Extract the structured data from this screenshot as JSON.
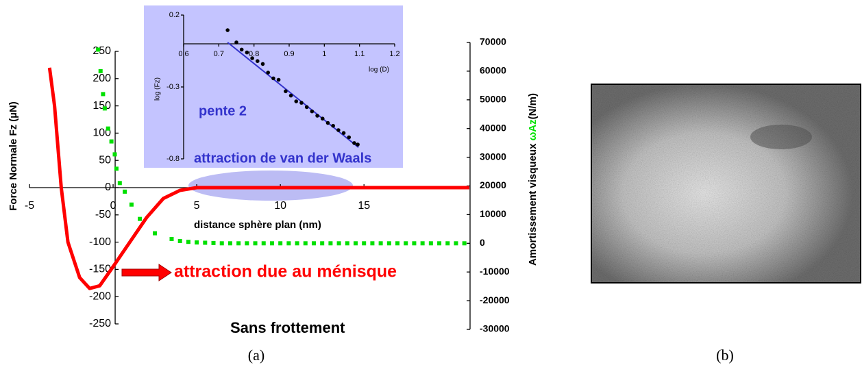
{
  "chart_data": [
    {
      "type": "line",
      "x_label": "distance sphère plan (nm)",
      "y_label": "Force Normale Fz (µN)",
      "y2_label_start": "Amortissement visqueux ",
      "y2_label_symbol": "ωAz",
      "y2_label_end": "(N/m)",
      "xlim": [
        -5,
        21.3
      ],
      "xticks": [
        -5,
        0,
        5,
        10,
        15
      ],
      "ylim": [
        -250,
        250
      ],
      "yticks": [
        -250,
        -200,
        -150,
        -100,
        -50,
        0,
        50,
        100,
        150,
        200,
        250
      ],
      "y2lim": [
        -30000,
        70000
      ],
      "y2ticks": [
        -30000,
        -20000,
        -10000,
        0,
        10000,
        20000,
        30000,
        40000,
        50000,
        60000,
        70000
      ],
      "series": [
        {
          "color": "#ff0000",
          "mode": "line",
          "axis": "y",
          "x": [
            -3.8,
            -3.5,
            -3.1,
            -2.7,
            -2.0,
            -1.4,
            -0.8,
            0,
            1,
            2,
            3,
            4,
            5,
            21.3
          ],
          "values": [
            220,
            150,
            0,
            -100,
            -165,
            -185,
            -180,
            -145,
            -100,
            -55,
            -20,
            -5,
            0,
            0
          ]
        },
        {
          "color": "#00e000",
          "mode": "markers",
          "axis": "y2",
          "x": [
            -0.9,
            -0.75,
            -0.6,
            -0.5,
            -0.3,
            -0.1,
            0.1,
            0.2,
            0.4,
            0.7,
            1.1,
            1.6,
            2.5,
            3.5,
            4,
            4.5,
            5,
            5.5,
            6,
            6.5,
            7,
            7.5,
            8,
            8.5,
            9,
            9.5,
            10,
            10.5,
            11,
            11.5,
            12,
            12.5,
            13,
            13.5,
            14,
            14.5,
            15,
            15.5,
            16,
            16.5,
            17,
            17.5,
            18,
            18.5,
            19,
            19.5,
            20,
            20.5,
            21
          ],
          "values": [
            67500,
            60000,
            52000,
            47000,
            40000,
            35500,
            31000,
            26000,
            21000,
            18000,
            13500,
            8500,
            3500,
            1500,
            800,
            500,
            300,
            200,
            100,
            0,
            0,
            0,
            0,
            0,
            0,
            0,
            0,
            0,
            0,
            0,
            0,
            0,
            0,
            0,
            0,
            0,
            0,
            0,
            0,
            0,
            0,
            0,
            0,
            0,
            0,
            0,
            0,
            0,
            0
          ]
        }
      ],
      "annotations": [
        {
          "text": "pente 2",
          "color": "#3333cc"
        },
        {
          "text": "attraction de van der Waals",
          "color": "#3333cc"
        },
        {
          "text": "attraction due au ménisque",
          "color": "#ff0000"
        },
        {
          "text": "Sans frottement",
          "color": "#000000"
        }
      ]
    },
    {
      "type": "scatter",
      "x_label": "log (D)",
      "y_label": "log (Fz)",
      "xlim": [
        0.6,
        1.2
      ],
      "xticks": [
        0.6,
        0.7,
        0.8,
        0.9,
        1,
        1.1,
        1.2
      ],
      "ylim": [
        -0.8,
        0.2
      ],
      "yticks": [
        -0.8,
        -0.3,
        0.2
      ],
      "color": "#000000",
      "x": [
        0.725,
        0.75,
        0.765,
        0.78,
        0.795,
        0.81,
        0.825,
        0.84,
        0.855,
        0.87,
        0.89,
        0.905,
        0.92,
        0.935,
        0.95,
        0.965,
        0.98,
        0.995,
        1.01,
        1.025,
        1.04,
        1.055,
        1.07,
        1.085,
        1.095
      ],
      "values": [
        0.095,
        0.01,
        -0.04,
        -0.06,
        -0.1,
        -0.12,
        -0.14,
        -0.2,
        -0.24,
        -0.25,
        -0.33,
        -0.36,
        -0.4,
        -0.41,
        -0.44,
        -0.47,
        -0.5,
        -0.52,
        -0.55,
        -0.57,
        -0.6,
        -0.62,
        -0.65,
        -0.69,
        -0.7
      ],
      "fit": {
        "color": "#3333cc",
        "x": [
          0.725,
          1.097
        ],
        "values": [
          0.01,
          -0.72
        ]
      }
    }
  ],
  "captions": [
    "(a)",
    "(b)"
  ]
}
